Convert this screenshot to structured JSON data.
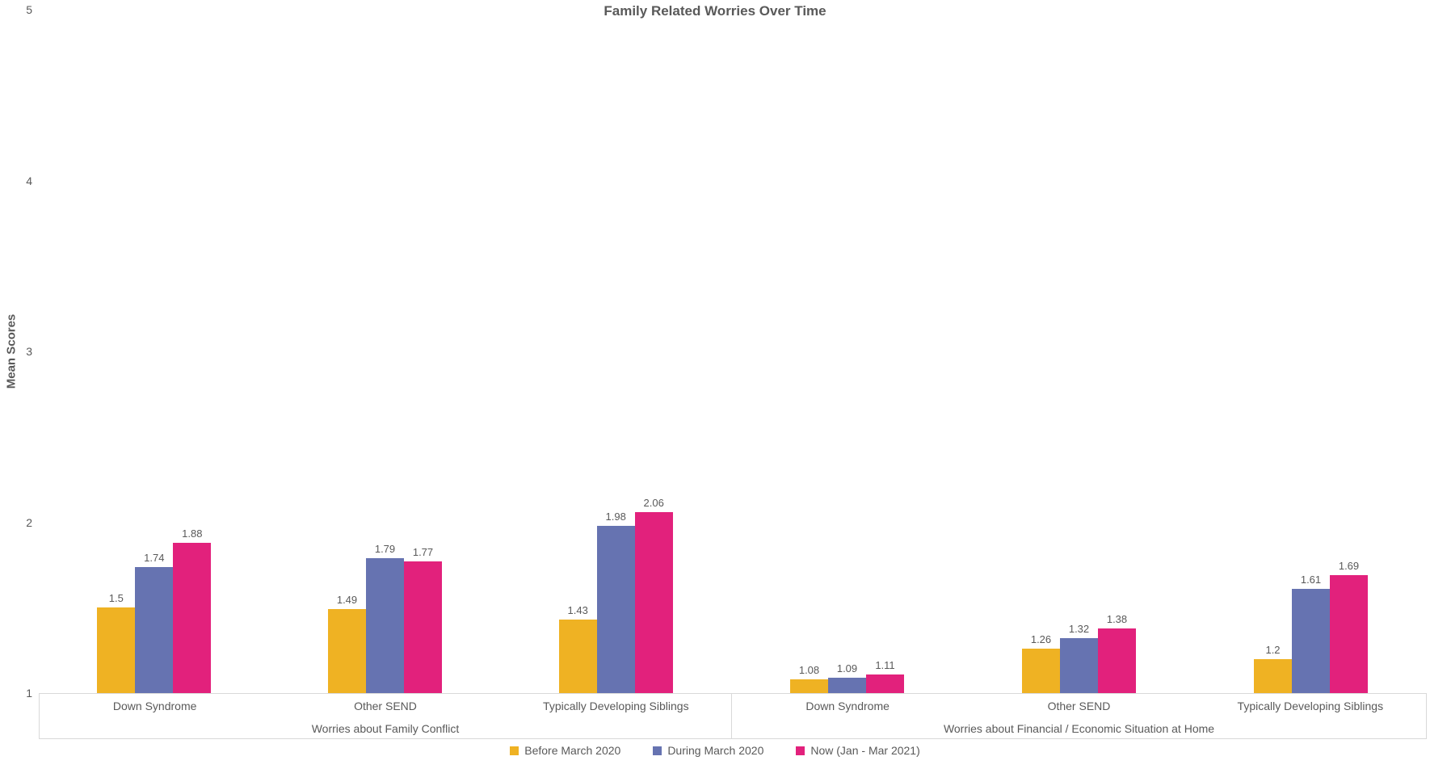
{
  "title": "Family Related Worries Over Time",
  "y_axis": {
    "title": "Mean Scores",
    "min": 1,
    "max": 5,
    "ticks": [
      5,
      4,
      3,
      2,
      1
    ]
  },
  "legend": [
    {
      "label": "Before March 2020",
      "color": "#EFB223"
    },
    {
      "label": "During March 2020",
      "color": "#6673B1"
    },
    {
      "label": "Now (Jan - Mar 2021)",
      "color": "#E2217C"
    }
  ],
  "colors": {
    "before_march_2020": "#EFB223",
    "during_march_2020": "#6673B1",
    "now_jan_mar_2021": "#E2217C",
    "text": "#595959",
    "axis_border": "#D9D9D9"
  },
  "chart_data": {
    "type": "bar",
    "title": "Family Related Worries Over Time",
    "xlabel": "",
    "ylabel": "Mean Scores",
    "ylim": [
      1,
      5
    ],
    "yticks": [
      1,
      2,
      3,
      4,
      5
    ],
    "grid": false,
    "legend_position": "bottom",
    "categories": [
      "Down Syndrome",
      "Other SEND",
      "Typically Developing Siblings"
    ],
    "sections": [
      {
        "label": "Worries about Family Conflict",
        "series": [
          {
            "name": "Before March 2020",
            "values": [
              1.5,
              1.49,
              1.43
            ]
          },
          {
            "name": "During March 2020",
            "values": [
              1.74,
              1.79,
              1.98
            ]
          },
          {
            "name": "Now (Jan - Mar 2021)",
            "values": [
              1.88,
              1.77,
              2.06
            ]
          }
        ]
      },
      {
        "label": "Worries about Financial / Economic Situation at Home",
        "series": [
          {
            "name": "Before March 2020",
            "values": [
              1.08,
              1.26,
              1.2
            ]
          },
          {
            "name": "During March 2020",
            "values": [
              1.09,
              1.32,
              1.61
            ]
          },
          {
            "name": "Now (Jan - Mar 2021)",
            "values": [
              1.11,
              1.38,
              1.69
            ]
          }
        ]
      }
    ]
  }
}
